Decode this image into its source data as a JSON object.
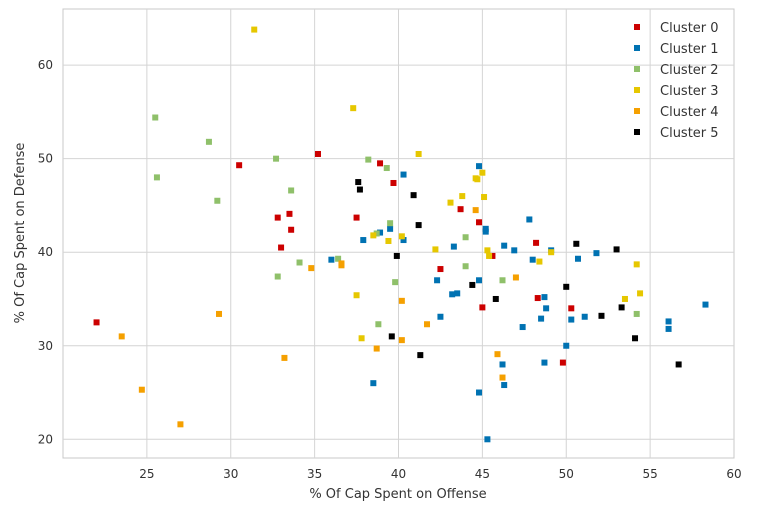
{
  "chart_data": {
    "type": "scatter",
    "title": "",
    "xlabel": "% Of Cap Spent on Offense",
    "ylabel": "% Of Cap Spent on Defense",
    "xlim": [
      20,
      60
    ],
    "ylim": [
      18,
      66
    ],
    "x_ticks": [
      25,
      30,
      35,
      40,
      45,
      50,
      55,
      60
    ],
    "y_ticks": [
      20,
      30,
      40,
      50,
      60
    ],
    "grid": true,
    "legend_position": "top-right",
    "series": [
      {
        "name": "Cluster 0",
        "color": "#cc0000",
        "points": [
          [
            22.0,
            32.5
          ],
          [
            30.5,
            49.3
          ],
          [
            32.8,
            43.7
          ],
          [
            33.0,
            40.5
          ],
          [
            33.5,
            44.1
          ],
          [
            33.6,
            42.4
          ],
          [
            35.2,
            50.5
          ],
          [
            37.5,
            43.7
          ],
          [
            38.9,
            49.5
          ],
          [
            39.7,
            47.4
          ],
          [
            42.5,
            38.2
          ],
          [
            43.7,
            44.6
          ],
          [
            44.8,
            43.2
          ],
          [
            45.0,
            34.1
          ],
          [
            45.6,
            39.6
          ],
          [
            48.2,
            41.0
          ],
          [
            48.3,
            35.1
          ],
          [
            49.8,
            28.2
          ],
          [
            50.3,
            34.0
          ]
        ]
      },
      {
        "name": "Cluster 1",
        "color": "#0072b2",
        "points": [
          [
            36.0,
            39.2
          ],
          [
            37.9,
            41.3
          ],
          [
            38.5,
            26.0
          ],
          [
            38.9,
            42.1
          ],
          [
            39.5,
            42.5
          ],
          [
            40.3,
            48.3
          ],
          [
            40.3,
            41.3
          ],
          [
            42.3,
            37.0
          ],
          [
            42.5,
            33.1
          ],
          [
            43.2,
            35.5
          ],
          [
            43.3,
            40.6
          ],
          [
            43.5,
            35.6
          ],
          [
            44.8,
            49.2
          ],
          [
            44.8,
            37.0
          ],
          [
            44.8,
            25.0
          ],
          [
            45.2,
            42.2
          ],
          [
            45.2,
            42.5
          ],
          [
            45.3,
            20.0
          ],
          [
            46.2,
            28.0
          ],
          [
            46.3,
            40.7
          ],
          [
            46.3,
            25.8
          ],
          [
            46.9,
            40.2
          ],
          [
            47.4,
            32.0
          ],
          [
            47.8,
            43.5
          ],
          [
            48.0,
            39.2
          ],
          [
            48.5,
            32.9
          ],
          [
            48.7,
            35.2
          ],
          [
            48.7,
            28.2
          ],
          [
            48.8,
            34.0
          ],
          [
            49.1,
            40.2
          ],
          [
            50.0,
            30.0
          ],
          [
            50.3,
            32.8
          ],
          [
            50.7,
            39.3
          ],
          [
            51.1,
            33.1
          ],
          [
            51.8,
            39.9
          ],
          [
            56.1,
            32.6
          ],
          [
            56.1,
            31.8
          ],
          [
            58.3,
            34.4
          ]
        ]
      },
      {
        "name": "Cluster 2",
        "color": "#8fc06a",
        "points": [
          [
            25.5,
            54.4
          ],
          [
            25.6,
            48.0
          ],
          [
            28.7,
            51.8
          ],
          [
            29.2,
            45.5
          ],
          [
            32.7,
            50.0
          ],
          [
            32.8,
            37.4
          ],
          [
            33.6,
            46.6
          ],
          [
            34.1,
            38.9
          ],
          [
            36.4,
            39.3
          ],
          [
            38.2,
            49.9
          ],
          [
            38.7,
            42.0
          ],
          [
            38.8,
            32.3
          ],
          [
            39.3,
            49.0
          ],
          [
            39.5,
            43.1
          ],
          [
            39.8,
            36.8
          ],
          [
            44.0,
            41.6
          ],
          [
            44.0,
            38.5
          ],
          [
            46.2,
            37.0
          ],
          [
            54.2,
            33.4
          ]
        ]
      },
      {
        "name": "Cluster 3",
        "color": "#e6c700",
        "points": [
          [
            31.4,
            63.8
          ],
          [
            37.3,
            55.4
          ],
          [
            37.5,
            35.4
          ],
          [
            37.8,
            30.8
          ],
          [
            38.5,
            41.8
          ],
          [
            39.4,
            41.2
          ],
          [
            40.2,
            41.7
          ],
          [
            41.2,
            50.5
          ],
          [
            42.2,
            40.3
          ],
          [
            43.1,
            45.3
          ],
          [
            43.8,
            46.0
          ],
          [
            44.6,
            47.9
          ],
          [
            44.7,
            47.8
          ],
          [
            45.0,
            48.5
          ],
          [
            45.1,
            45.9
          ],
          [
            45.3,
            40.2
          ],
          [
            45.4,
            39.6
          ],
          [
            48.4,
            39.0
          ],
          [
            49.1,
            40.0
          ],
          [
            53.5,
            35.0
          ],
          [
            54.2,
            38.7
          ],
          [
            54.4,
            35.6
          ]
        ]
      },
      {
        "name": "Cluster 4",
        "color": "#f5a000",
        "points": [
          [
            23.5,
            31.0
          ],
          [
            24.7,
            25.3
          ],
          [
            27.0,
            21.6
          ],
          [
            29.3,
            33.4
          ],
          [
            33.2,
            28.7
          ],
          [
            34.8,
            38.3
          ],
          [
            36.6,
            38.6
          ],
          [
            36.6,
            38.8
          ],
          [
            38.7,
            29.7
          ],
          [
            40.2,
            34.8
          ],
          [
            40.2,
            30.6
          ],
          [
            41.7,
            32.3
          ],
          [
            44.6,
            44.5
          ],
          [
            45.9,
            29.1
          ],
          [
            46.2,
            26.6
          ],
          [
            47.0,
            37.3
          ]
        ]
      },
      {
        "name": "Cluster 5",
        "color": "#000000",
        "points": [
          [
            37.6,
            47.5
          ],
          [
            37.7,
            46.7
          ],
          [
            39.6,
            31.0
          ],
          [
            39.9,
            39.6
          ],
          [
            40.9,
            46.1
          ],
          [
            41.2,
            42.9
          ],
          [
            41.3,
            29.0
          ],
          [
            44.4,
            36.5
          ],
          [
            45.8,
            35.0
          ],
          [
            50.0,
            36.3
          ],
          [
            50.6,
            40.9
          ],
          [
            52.1,
            33.2
          ],
          [
            53.0,
            40.3
          ],
          [
            53.3,
            34.1
          ],
          [
            54.1,
            30.8
          ],
          [
            56.7,
            28.0
          ]
        ]
      }
    ]
  }
}
